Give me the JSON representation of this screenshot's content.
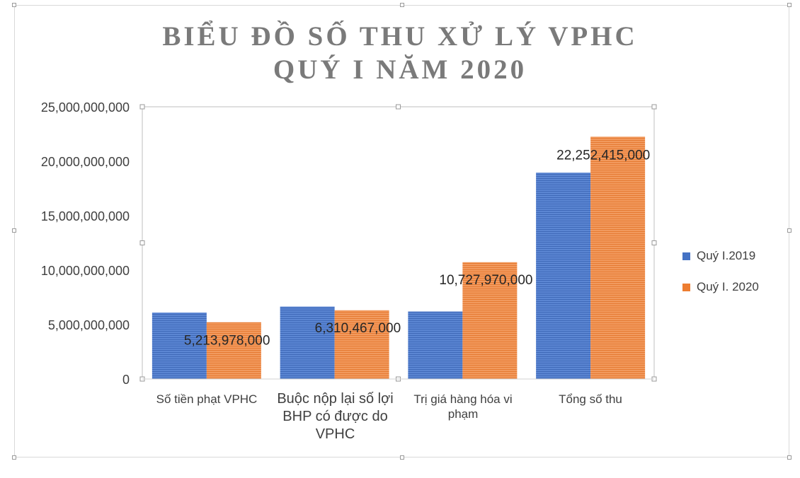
{
  "chart_data": {
    "type": "bar",
    "title": [
      "BIỂU ĐỒ SỐ THU XỬ LÝ VPHC",
      "QUÝ I NĂM 2020"
    ],
    "categories": [
      "Số tiền phạt VPHC",
      "Buộc nộp lại số lợi BHP có được do VPHC",
      "Trị giá hàng hóa vi phạm",
      "Tổng số thu"
    ],
    "series": [
      {
        "name": "Quý I.2019",
        "color": "#4472c4",
        "values": [
          6100000000,
          6650000000,
          6200000000,
          18950000000
        ]
      },
      {
        "name": "Quý I. 2020",
        "color": "#ed7d31",
        "values": [
          5213978000,
          6310467000,
          10727970000,
          22252415000
        ]
      }
    ],
    "data_labels": {
      "series_index": 1,
      "texts": [
        "5,213,978,000",
        "6,310,467,000",
        "10,727,970,000",
        "22,252,415,000"
      ]
    },
    "y_ticks": [
      "0",
      "5,000,000,000",
      "10,000,000,000",
      "15,000,000,000",
      "20,000,000,000",
      "25,000,000,000"
    ],
    "ylim": [
      0,
      25000000000
    ],
    "grid": false,
    "legend_position": "right"
  }
}
